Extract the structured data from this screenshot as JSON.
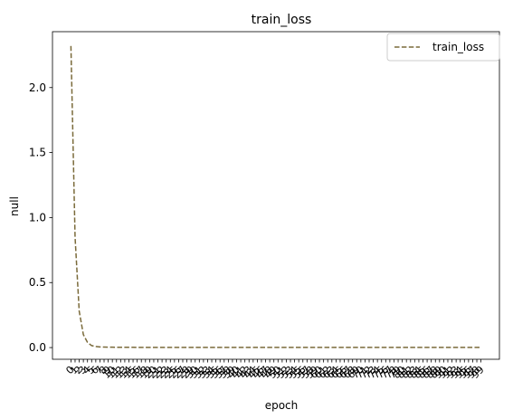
{
  "chart_data": {
    "type": "line",
    "title": "train_loss",
    "xlabel": "epoch",
    "ylabel": "null",
    "ylim": [
      -0.09,
      2.43
    ],
    "yticks": [
      "0.0",
      "0.5",
      "1.0",
      "1.5",
      "2.0"
    ],
    "ytick_values": [
      0.0,
      0.5,
      1.0,
      1.5,
      2.0
    ],
    "grid": false,
    "legend_position": "top-right",
    "x": [
      0,
      1,
      2,
      3,
      4,
      5,
      6,
      7,
      8,
      9,
      10,
      11,
      12,
      13,
      14,
      15,
      16,
      17,
      18,
      19,
      20,
      21,
      22,
      23,
      24,
      25,
      26,
      27,
      28,
      29,
      30,
      31,
      32,
      33,
      34,
      35,
      36,
      37,
      38,
      39,
      40,
      41,
      42,
      43,
      44,
      45,
      46,
      47,
      48,
      49,
      50,
      51,
      52,
      53,
      54,
      55,
      56,
      57,
      58,
      59,
      60,
      61,
      62,
      63,
      64,
      65,
      66,
      67,
      68,
      69,
      70,
      71,
      72,
      73,
      74,
      75,
      76,
      77,
      78,
      79,
      80,
      81,
      82,
      83,
      84,
      85,
      86,
      87,
      88,
      89,
      90,
      91,
      92,
      93,
      94,
      95,
      96,
      97,
      98,
      99
    ],
    "series": [
      {
        "name": "train_loss",
        "color": "#7a6a3a",
        "style": "dashed",
        "values": [
          2.32,
          0.85,
          0.28,
          0.1,
          0.04,
          0.015,
          0.008,
          0.005,
          0.004,
          0.003,
          0.003,
          0.002,
          0.002,
          0.002,
          0.002,
          0.002,
          0.001,
          0.001,
          0.001,
          0.001,
          0.001,
          0.001,
          0.001,
          0.001,
          0.001,
          0.001,
          0.001,
          0.001,
          0.001,
          0.001,
          0.001,
          0.001,
          0.001,
          0.001,
          0.001,
          0.001,
          0.001,
          0.001,
          0.001,
          0.001,
          0.001,
          0.001,
          0.001,
          0.001,
          0.001,
          0.001,
          0.001,
          0.001,
          0.001,
          0.001,
          0.001,
          0.001,
          0.001,
          0.001,
          0.001,
          0.001,
          0.001,
          0.001,
          0.001,
          0.001,
          0.001,
          0.001,
          0.001,
          0.001,
          0.001,
          0.001,
          0.001,
          0.001,
          0.001,
          0.001,
          0.001,
          0.001,
          0.001,
          0.001,
          0.001,
          0.001,
          0.001,
          0.001,
          0.001,
          0.001,
          0.001,
          0.001,
          0.001,
          0.001,
          0.001,
          0.001,
          0.001,
          0.001,
          0.001,
          0.001,
          0.001,
          0.001,
          0.001,
          0.001,
          0.001,
          0.001,
          0.001,
          0.001,
          0.001,
          0.001
        ]
      }
    ]
  }
}
